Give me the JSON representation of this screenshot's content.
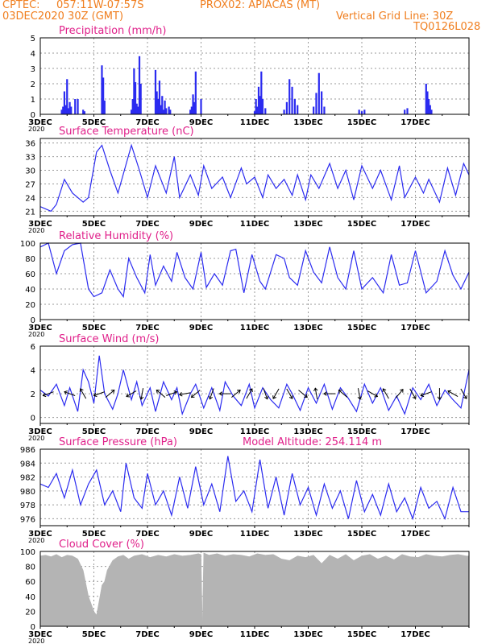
{
  "header": {
    "source": "CPTEC:",
    "coords": "057:11W-07:57S",
    "station": "PROX02: APIACAS (MT)",
    "date": "03DEC2020 30Z (GMT)",
    "grid_note": "Vertical Grid Line: 30Z",
    "code": "TQ0126L028"
  },
  "colors": {
    "header": "#f07e1e",
    "title": "#e0208a",
    "series": "#2b2bf0",
    "cloud": "#b4b4b4",
    "grid": "#9a9a9a"
  },
  "x_labels": [
    "3DEC",
    "5DEC",
    "7DEC",
    "9DEC",
    "11DEC",
    "13DEC",
    "15DEC",
    "17DEC"
  ],
  "y_stub": "2020",
  "chart_data": [
    {
      "id": "precip",
      "type": "bar",
      "title": "Precipitation (mm/h)",
      "ylim": [
        0,
        5
      ],
      "yticks": [
        "0",
        "1",
        "2",
        "3",
        "4",
        "5"
      ],
      "x_range_days": [
        0,
        16
      ],
      "x": [
        0.8,
        0.85,
        0.9,
        0.95,
        1.0,
        1.05,
        1.1,
        1.15,
        1.3,
        1.4,
        1.6,
        1.65,
        2.3,
        2.35,
        2.4,
        3.4,
        3.45,
        3.5,
        3.55,
        3.6,
        3.65,
        3.7,
        3.75,
        4.3,
        4.35,
        4.4,
        4.45,
        4.5,
        4.55,
        4.6,
        4.65,
        4.7,
        4.8,
        4.85,
        5.6,
        5.65,
        5.7,
        5.75,
        5.8,
        6.0,
        8.0,
        8.05,
        8.1,
        8.15,
        8.2,
        8.25,
        8.3,
        8.4,
        9.1,
        9.2,
        9.3,
        9.4,
        9.5,
        9.6,
        10.2,
        10.3,
        10.4,
        10.5,
        10.6,
        11.9,
        12.0,
        12.1,
        13.6,
        13.7,
        14.4,
        14.45,
        14.5,
        14.55,
        14.6
      ],
      "values": [
        0.3,
        0.5,
        1.5,
        0.6,
        2.3,
        0.4,
        0.8,
        0.5,
        1.0,
        1.0,
        0.3,
        0.2,
        3.2,
        2.4,
        0.9,
        0.3,
        1.0,
        3.0,
        2.1,
        0.7,
        0.5,
        3.8,
        2.0,
        2.9,
        1.5,
        1.0,
        2.2,
        0.6,
        1.2,
        0.3,
        0.9,
        0.4,
        0.5,
        0.3,
        0.3,
        0.5,
        1.3,
        0.8,
        2.8,
        1.0,
        0.2,
        1.0,
        0.5,
        1.8,
        1.2,
        2.8,
        1.0,
        0.4,
        0.3,
        0.8,
        2.3,
        1.8,
        1.0,
        0.6,
        0.5,
        1.4,
        2.7,
        1.5,
        0.5,
        0.3,
        0.2,
        0.3,
        0.3,
        0.4,
        2.0,
        1.5,
        1.0,
        0.6,
        0.3
      ]
    },
    {
      "id": "temp",
      "type": "line",
      "title": "Surface Temperature (nC)",
      "ylim": [
        20,
        37
      ],
      "yticks": [
        "21",
        "24",
        "27",
        "30",
        "33",
        "36"
      ],
      "ytick_values": [
        21,
        24,
        27,
        30,
        33,
        36
      ],
      "x_range_days": [
        0,
        16
      ],
      "x": [
        0,
        0.4,
        0.6,
        0.9,
        1.2,
        1.6,
        1.8,
        2.1,
        2.3,
        2.6,
        2.9,
        3.4,
        3.7,
        4.0,
        4.3,
        4.7,
        5.0,
        5.2,
        5.6,
        5.9,
        6.1,
        6.4,
        6.8,
        7.1,
        7.5,
        7.7,
        8.0,
        8.3,
        8.5,
        8.8,
        9.1,
        9.4,
        9.6,
        9.9,
        10.1,
        10.4,
        10.8,
        11.1,
        11.4,
        11.7,
        12.0,
        12.4,
        12.7,
        13.1,
        13.4,
        13.6,
        14.0,
        14.3,
        14.5,
        14.9,
        15.2,
        15.5,
        15.8,
        16.0
      ],
      "values": [
        22.0,
        21.0,
        22.5,
        28.0,
        25.0,
        23.0,
        24.0,
        34.0,
        35.5,
        30.0,
        25.0,
        35.5,
        30.0,
        24.0,
        31.0,
        25.0,
        33.0,
        24.0,
        29.0,
        24.5,
        31.0,
        26.0,
        28.5,
        24.0,
        30.5,
        27.0,
        28.5,
        24.0,
        29.0,
        26.0,
        28.0,
        24.5,
        29.0,
        23.5,
        29.0,
        26.0,
        31.5,
        26.0,
        30.0,
        23.5,
        31.0,
        26.0,
        30.0,
        23.5,
        31.0,
        24.0,
        28.5,
        25.0,
        28.0,
        23.0,
        30.5,
        24.5,
        31.5,
        29.0
      ]
    },
    {
      "id": "rh",
      "type": "line",
      "title": "Relative Humidity (%)",
      "ylim": [
        0,
        100
      ],
      "yticks": [
        "0",
        "20",
        "40",
        "60",
        "80",
        "100"
      ],
      "x_range_days": [
        0,
        16
      ],
      "x": [
        0,
        0.3,
        0.6,
        0.9,
        1.2,
        1.5,
        1.8,
        2.0,
        2.3,
        2.6,
        2.9,
        3.1,
        3.3,
        3.6,
        3.9,
        4.1,
        4.3,
        4.6,
        4.9,
        5.1,
        5.4,
        5.7,
        6.0,
        6.2,
        6.5,
        6.8,
        7.1,
        7.3,
        7.6,
        7.9,
        8.2,
        8.4,
        8.8,
        9.1,
        9.3,
        9.6,
        9.9,
        10.2,
        10.5,
        10.8,
        11.1,
        11.4,
        11.7,
        12.0,
        12.4,
        12.8,
        13.1,
        13.4,
        13.7,
        14.0,
        14.4,
        14.8,
        15.1,
        15.4,
        15.7,
        16.0
      ],
      "values": [
        95,
        100,
        60,
        90,
        98,
        100,
        40,
        30,
        35,
        65,
        40,
        30,
        80,
        55,
        35,
        85,
        45,
        70,
        50,
        88,
        55,
        40,
        88,
        42,
        60,
        45,
        90,
        92,
        35,
        85,
        50,
        40,
        85,
        80,
        55,
        45,
        90,
        62,
        48,
        95,
        55,
        40,
        90,
        40,
        55,
        35,
        85,
        45,
        48,
        90,
        35,
        50,
        90,
        58,
        40,
        62
      ]
    },
    {
      "id": "wind",
      "type": "line",
      "title": "Surface Wind (m/s)",
      "ylim": [
        -0.5,
        6
      ],
      "yticks": [
        "0",
        "2",
        "4",
        "6"
      ],
      "ytick_values": [
        0,
        2,
        4,
        6
      ],
      "x_range_days": [
        0,
        16
      ],
      "x": [
        0,
        0.3,
        0.6,
        0.9,
        1.1,
        1.4,
        1.6,
        1.8,
        2.0,
        2.2,
        2.4,
        2.7,
        2.9,
        3.1,
        3.4,
        3.6,
        3.8,
        4.1,
        4.3,
        4.6,
        4.9,
        5.1,
        5.3,
        5.6,
        5.8,
        6.1,
        6.4,
        6.7,
        6.9,
        7.2,
        7.5,
        7.8,
        8.0,
        8.3,
        8.6,
        8.9,
        9.2,
        9.4,
        9.7,
        10.0,
        10.3,
        10.6,
        10.9,
        11.2,
        11.5,
        11.8,
        12.1,
        12.4,
        12.7,
        13.0,
        13.3,
        13.6,
        13.9,
        14.2,
        14.5,
        14.8,
        15.1,
        15.4,
        15.7,
        16.0
      ],
      "values": [
        2.3,
        1.8,
        2.8,
        1.0,
        2.5,
        0.5,
        4.0,
        3.0,
        1.2,
        5.2,
        2.0,
        0.7,
        2.0,
        4.0,
        1.5,
        3.0,
        1.0,
        2.5,
        0.5,
        3.0,
        1.5,
        2.5,
        0.3,
        2.0,
        2.8,
        0.8,
        2.5,
        0.6,
        3.0,
        1.8,
        1.0,
        2.8,
        0.8,
        2.5,
        1.5,
        0.8,
        2.8,
        2.0,
        0.6,
        2.5,
        1.2,
        2.8,
        0.7,
        2.5,
        1.6,
        0.5,
        2.8,
        1.2,
        2.5,
        0.6,
        1.8,
        0.3,
        2.5,
        1.5,
        2.8,
        1.0,
        2.3,
        1.5,
        0.8,
        4.0
      ],
      "arrows_x": [
        0.3,
        1.1,
        1.6,
        2.2,
        2.6,
        3.4,
        3.8,
        4.5,
        4.9,
        5.4,
        5.8,
        6.4,
        6.9,
        7.3,
        7.8,
        8.4,
        8.8,
        9.3,
        9.8,
        10.3,
        10.8,
        11.3,
        11.9,
        12.4,
        12.9,
        13.4,
        13.9,
        14.4,
        14.9,
        15.4,
        15.8
      ],
      "arrows_deg": [
        200,
        160,
        120,
        200,
        40,
        210,
        260,
        140,
        20,
        190,
        220,
        250,
        180,
        40,
        60,
        290,
        240,
        300,
        320,
        100,
        180,
        140,
        280,
        330,
        120,
        50,
        300,
        200,
        270,
        150,
        300
      ]
    },
    {
      "id": "pres",
      "type": "line",
      "title": "Surface Pressure (hPa)",
      "note": "Model Altitude: 254.114 m",
      "ylim": [
        975,
        986
      ],
      "yticks": [
        "976",
        "978",
        "980",
        "982",
        "984",
        "986"
      ],
      "ytick_values": [
        976,
        978,
        980,
        982,
        984,
        986
      ],
      "x_range_days": [
        0,
        16
      ],
      "x": [
        0,
        0.3,
        0.6,
        0.9,
        1.2,
        1.5,
        1.8,
        2.1,
        2.4,
        2.7,
        3.0,
        3.2,
        3.5,
        3.8,
        4.0,
        4.3,
        4.6,
        4.9,
        5.2,
        5.5,
        5.8,
        6.1,
        6.4,
        6.7,
        7.0,
        7.3,
        7.6,
        7.9,
        8.2,
        8.5,
        8.8,
        9.1,
        9.4,
        9.7,
        10.0,
        10.3,
        10.6,
        10.9,
        11.2,
        11.5,
        11.8,
        12.1,
        12.4,
        12.7,
        13.0,
        13.3,
        13.6,
        13.9,
        14.2,
        14.5,
        14.8,
        15.1,
        15.4,
        15.7,
        16.0
      ],
      "values": [
        981.0,
        980.5,
        982.5,
        979.0,
        983.0,
        978.0,
        981.0,
        983.0,
        978.0,
        980.0,
        977.0,
        984.0,
        979.0,
        977.5,
        982.5,
        978.0,
        980.0,
        976.5,
        982.0,
        977.5,
        983.5,
        978.0,
        981.0,
        977.0,
        985.0,
        978.5,
        980.0,
        977.0,
        984.5,
        977.5,
        982.0,
        976.5,
        982.5,
        978.0,
        980.5,
        976.5,
        981.0,
        977.5,
        980.0,
        976.0,
        981.5,
        977.0,
        979.5,
        976.5,
        981.0,
        977.0,
        979.0,
        976.0,
        980.5,
        977.5,
        978.5,
        976.0,
        980.5,
        977.0,
        977.0
      ]
    },
    {
      "id": "cloud",
      "type": "area",
      "title": "Cloud Cover (%)",
      "ylim": [
        0,
        100
      ],
      "yticks": [
        "0",
        "20",
        "40",
        "60",
        "80",
        "100"
      ],
      "x_range_days": [
        0,
        16
      ],
      "x": [
        0,
        0.2,
        0.4,
        0.6,
        0.8,
        1.0,
        1.2,
        1.4,
        1.6,
        1.8,
        1.9,
        2.0,
        2.1,
        2.2,
        2.3,
        2.4,
        2.5,
        2.7,
        2.9,
        3.1,
        3.3,
        3.5,
        3.8,
        4.1,
        4.4,
        4.7,
        5.0,
        5.3,
        5.6,
        5.9,
        6.0,
        6.05,
        6.1,
        6.3,
        6.6,
        6.9,
        7.2,
        7.5,
        7.8,
        8.1,
        8.4,
        8.7,
        9.0,
        9.3,
        9.6,
        9.9,
        10.2,
        10.5,
        10.8,
        11.1,
        11.4,
        11.7,
        12.0,
        12.3,
        12.6,
        12.9,
        13.2,
        13.5,
        13.8,
        14.1,
        14.4,
        14.7,
        15.0,
        15.3,
        15.6,
        15.9,
        16.0
      ],
      "values": [
        94,
        95,
        93,
        96,
        92,
        95,
        94,
        90,
        75,
        40,
        30,
        20,
        15,
        35,
        55,
        60,
        75,
        88,
        93,
        95,
        90,
        94,
        96,
        92,
        95,
        93,
        96,
        94,
        95,
        97,
        96,
        0,
        98,
        95,
        97,
        94,
        96,
        95,
        93,
        97,
        95,
        96,
        90,
        88,
        94,
        92,
        95,
        84,
        95,
        90,
        96,
        88,
        94,
        96,
        90,
        94,
        89,
        96,
        93,
        92,
        96,
        94,
        93,
        95,
        96,
        94,
        94
      ]
    }
  ]
}
